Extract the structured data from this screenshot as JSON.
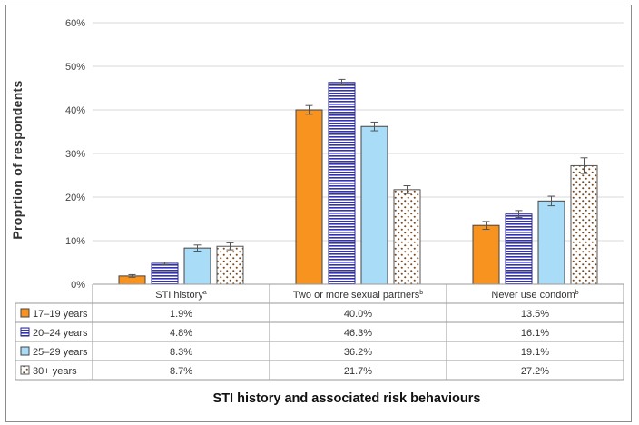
{
  "chart_data": {
    "type": "bar",
    "title": "",
    "ylabel": "Proprtion of respondents",
    "xlabel": "STI history and associated risk behaviours",
    "ylim": [
      0,
      60
    ],
    "ytick_labels": [
      "0%",
      "10%",
      "20%",
      "30%",
      "40%",
      "50%",
      "60%"
    ],
    "grid": true,
    "categories": [
      "STI history",
      "Two or more sexual partners",
      "Never use condom"
    ],
    "category_superscripts": [
      "a",
      "b",
      "b"
    ],
    "series": [
      {
        "name": "17–19 years",
        "values": [
          1.9,
          40.0,
          13.5
        ],
        "labels": [
          "1.9%",
          "40.0%",
          "13.5%"
        ],
        "err": [
          0.3,
          1.0,
          0.9
        ],
        "color": "#F7931E",
        "pattern": "solid"
      },
      {
        "name": "20–24 years",
        "values": [
          4.8,
          46.3,
          16.1
        ],
        "labels": [
          "4.8%",
          "46.3%",
          "16.1%"
        ],
        "err": [
          0.3,
          0.7,
          0.8
        ],
        "color": "#3333B2",
        "pattern": "horizontal-lines"
      },
      {
        "name": "25–29 years",
        "values": [
          8.3,
          36.2,
          19.1
        ],
        "labels": [
          "8.3%",
          "36.2%",
          "19.1%"
        ],
        "err": [
          0.7,
          1.0,
          1.1
        ],
        "color": "#A9DCF7",
        "pattern": "solid"
      },
      {
        "name": "30+ years",
        "values": [
          8.7,
          21.7,
          27.2
        ],
        "labels": [
          "8.7%",
          "21.7%",
          "27.2%"
        ],
        "err": [
          0.8,
          0.9,
          1.8
        ],
        "color": "#7A4A1E",
        "pattern": "dots"
      }
    ],
    "legend_placement": "data-table-rows"
  }
}
